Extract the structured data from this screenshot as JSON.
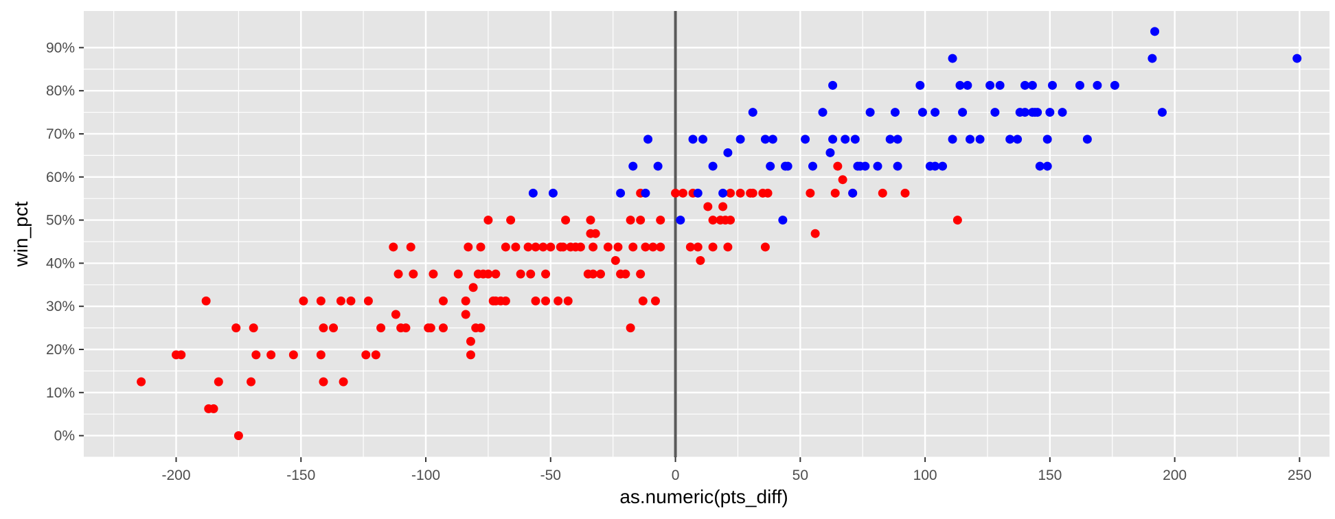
{
  "chart_data": {
    "type": "scatter",
    "xlabel": "as.numeric(pts_diff)",
    "ylabel": "win_pct",
    "xlim": [
      -237,
      262
    ],
    "ylim": [
      -0.05,
      0.985
    ],
    "x_ticks": [
      -200,
      -150,
      -100,
      -50,
      0,
      50,
      100,
      150,
      200,
      250
    ],
    "x_tick_labels": [
      "-200",
      "-150",
      "-100",
      "-50",
      "0",
      "50",
      "100",
      "150",
      "200",
      "250"
    ],
    "y_ticks": [
      0,
      0.1,
      0.2,
      0.3,
      0.4,
      0.5,
      0.6,
      0.7,
      0.8,
      0.9
    ],
    "y_tick_labels": [
      "0%",
      "10%",
      "20%",
      "30%",
      "40%",
      "50%",
      "60%",
      "70%",
      "80%",
      "90%"
    ],
    "vline_x": 0,
    "grid": true,
    "legend": "none",
    "colors": {
      "panel": "#e5e5e5",
      "grid": "#ffffff",
      "vline": "#5a5a5a",
      "red_series": "#ff0000",
      "blue_series": "#0000ff",
      "tick_text": "#4d4d4d"
    },
    "series": [
      {
        "color": "#ff0000",
        "points": [
          [
            -214,
            0.125
          ],
          [
            -200,
            0.1875
          ],
          [
            -198,
            0.1875
          ],
          [
            -188,
            0.3125
          ],
          [
            -187,
            0.0625
          ],
          [
            -185,
            0.0625
          ],
          [
            -183,
            0.125
          ],
          [
            -176,
            0.25
          ],
          [
            -175,
            0.0
          ],
          [
            -170,
            0.125
          ],
          [
            -169,
            0.25
          ],
          [
            -168,
            0.1875
          ],
          [
            -162,
            0.1875
          ],
          [
            -153,
            0.1875
          ],
          [
            -149,
            0.3125
          ],
          [
            -142,
            0.3125
          ],
          [
            -142,
            0.1875
          ],
          [
            -141,
            0.25
          ],
          [
            -141,
            0.125
          ],
          [
            -137,
            0.25
          ],
          [
            -134,
            0.3125
          ],
          [
            -133,
            0.125
          ],
          [
            -130,
            0.3125
          ],
          [
            -124,
            0.1875
          ],
          [
            -123,
            0.3125
          ],
          [
            -120,
            0.1875
          ],
          [
            -118,
            0.25
          ],
          [
            -113,
            0.4375
          ],
          [
            -112,
            0.28125
          ],
          [
            -111,
            0.375
          ],
          [
            -110,
            0.25
          ],
          [
            -108,
            0.25
          ],
          [
            -106,
            0.4375
          ],
          [
            -105,
            0.375
          ],
          [
            -99,
            0.25
          ],
          [
            -98,
            0.25
          ],
          [
            -97,
            0.375
          ],
          [
            -93,
            0.3125
          ],
          [
            -93,
            0.25
          ],
          [
            -87,
            0.375
          ],
          [
            -84,
            0.3125
          ],
          [
            -84,
            0.28125
          ],
          [
            -83,
            0.4375
          ],
          [
            -82,
            0.21875
          ],
          [
            -82,
            0.1875
          ],
          [
            -81,
            0.34375
          ],
          [
            -80,
            0.25
          ],
          [
            -79,
            0.375
          ],
          [
            -78,
            0.4375
          ],
          [
            -78,
            0.25
          ],
          [
            -77,
            0.375
          ],
          [
            -75,
            0.375
          ],
          [
            -75,
            0.5
          ],
          [
            -73,
            0.3125
          ],
          [
            -72,
            0.375
          ],
          [
            -72,
            0.3125
          ],
          [
            -70,
            0.3125
          ],
          [
            -68,
            0.4375
          ],
          [
            -68,
            0.3125
          ],
          [
            -66,
            0.5
          ],
          [
            -64,
            0.4375
          ],
          [
            -62,
            0.375
          ],
          [
            -59,
            0.4375
          ],
          [
            -58,
            0.375
          ],
          [
            -56,
            0.3125
          ],
          [
            -56,
            0.4375
          ],
          [
            -53,
            0.4375
          ],
          [
            -52,
            0.375
          ],
          [
            -52,
            0.3125
          ],
          [
            -50,
            0.4375
          ],
          [
            -47,
            0.3125
          ],
          [
            -46,
            0.4375
          ],
          [
            -45,
            0.4375
          ],
          [
            -44,
            0.5
          ],
          [
            -43,
            0.3125
          ],
          [
            -42,
            0.4375
          ],
          [
            -40,
            0.4375
          ],
          [
            -38,
            0.4375
          ],
          [
            -35,
            0.375
          ],
          [
            -34,
            0.46875
          ],
          [
            -34,
            0.5
          ],
          [
            -33,
            0.4375
          ],
          [
            -33,
            0.375
          ],
          [
            -32,
            0.46875
          ],
          [
            -30,
            0.375
          ],
          [
            -27,
            0.4375
          ],
          [
            -24,
            0.40625
          ],
          [
            -23,
            0.4375
          ],
          [
            -22,
            0.375
          ],
          [
            -20,
            0.375
          ],
          [
            -18,
            0.25
          ],
          [
            -18,
            0.5
          ],
          [
            -17,
            0.4375
          ],
          [
            -14,
            0.5625
          ],
          [
            -14,
            0.5
          ],
          [
            -14,
            0.375
          ],
          [
            -13,
            0.3125
          ],
          [
            -12,
            0.4375
          ],
          [
            -9,
            0.4375
          ],
          [
            -8,
            0.3125
          ],
          [
            -6,
            0.5
          ],
          [
            -6,
            0.4375
          ],
          [
            0,
            0.5625
          ],
          [
            3,
            0.5625
          ],
          [
            6,
            0.4375
          ],
          [
            7,
            0.5625
          ],
          [
            9,
            0.4375
          ],
          [
            10,
            0.40625
          ],
          [
            13,
            0.53125
          ],
          [
            15,
            0.5
          ],
          [
            15,
            0.4375
          ],
          [
            18,
            0.5
          ],
          [
            19,
            0.53125
          ],
          [
            20,
            0.5
          ],
          [
            21,
            0.4375
          ],
          [
            22,
            0.5
          ],
          [
            22,
            0.5625
          ],
          [
            26,
            0.5625
          ],
          [
            30,
            0.5625
          ],
          [
            31,
            0.5625
          ],
          [
            35,
            0.5625
          ],
          [
            36,
            0.4375
          ],
          [
            37,
            0.5625
          ],
          [
            54,
            0.5625
          ],
          [
            56,
            0.46875
          ],
          [
            64,
            0.5625
          ],
          [
            65,
            0.625
          ],
          [
            67,
            0.59375
          ],
          [
            71,
            0.5625
          ],
          [
            83,
            0.5625
          ],
          [
            92,
            0.5625
          ],
          [
            113,
            0.5
          ]
        ]
      },
      {
        "color": "#0000ff",
        "points": [
          [
            -57,
            0.5625
          ],
          [
            -49,
            0.5625
          ],
          [
            -22,
            0.5625
          ],
          [
            -17,
            0.625
          ],
          [
            -12,
            0.5625
          ],
          [
            -11,
            0.6875
          ],
          [
            -7,
            0.625
          ],
          [
            2,
            0.5
          ],
          [
            7,
            0.6875
          ],
          [
            9,
            0.5625
          ],
          [
            11,
            0.6875
          ],
          [
            15,
            0.625
          ],
          [
            19,
            0.5625
          ],
          [
            21,
            0.65625
          ],
          [
            26,
            0.6875
          ],
          [
            31,
            0.75
          ],
          [
            36,
            0.6875
          ],
          [
            38,
            0.625
          ],
          [
            39,
            0.6875
          ],
          [
            43,
            0.5
          ],
          [
            44,
            0.625
          ],
          [
            45,
            0.625
          ],
          [
            52,
            0.6875
          ],
          [
            55,
            0.625
          ],
          [
            59,
            0.75
          ],
          [
            62,
            0.65625
          ],
          [
            63,
            0.6875
          ],
          [
            63,
            0.8125
          ],
          [
            68,
            0.6875
          ],
          [
            71,
            0.5625
          ],
          [
            72,
            0.6875
          ],
          [
            73,
            0.625
          ],
          [
            74,
            0.625
          ],
          [
            76,
            0.625
          ],
          [
            78,
            0.75
          ],
          [
            81,
            0.625
          ],
          [
            86,
            0.6875
          ],
          [
            88,
            0.75
          ],
          [
            89,
            0.6875
          ],
          [
            89,
            0.625
          ],
          [
            98,
            0.8125
          ],
          [
            99,
            0.75
          ],
          [
            102,
            0.625
          ],
          [
            104,
            0.75
          ],
          [
            104,
            0.625
          ],
          [
            107,
            0.625
          ],
          [
            111,
            0.6875
          ],
          [
            111,
            0.875
          ],
          [
            114,
            0.8125
          ],
          [
            115,
            0.75
          ],
          [
            117,
            0.8125
          ],
          [
            118,
            0.6875
          ],
          [
            122,
            0.6875
          ],
          [
            126,
            0.8125
          ],
          [
            128,
            0.75
          ],
          [
            130,
            0.8125
          ],
          [
            134,
            0.6875
          ],
          [
            137,
            0.6875
          ],
          [
            138,
            0.75
          ],
          [
            140,
            0.8125
          ],
          [
            140,
            0.75
          ],
          [
            143,
            0.75
          ],
          [
            143,
            0.8125
          ],
          [
            144,
            0.75
          ],
          [
            145,
            0.75
          ],
          [
            146,
            0.625
          ],
          [
            149,
            0.6875
          ],
          [
            149,
            0.625
          ],
          [
            150,
            0.75
          ],
          [
            151,
            0.8125
          ],
          [
            155,
            0.75
          ],
          [
            162,
            0.8125
          ],
          [
            165,
            0.6875
          ],
          [
            169,
            0.8125
          ],
          [
            176,
            0.8125
          ],
          [
            191,
            0.875
          ],
          [
            192,
            0.9375
          ],
          [
            195,
            0.75
          ],
          [
            249,
            0.875
          ]
        ]
      }
    ]
  }
}
